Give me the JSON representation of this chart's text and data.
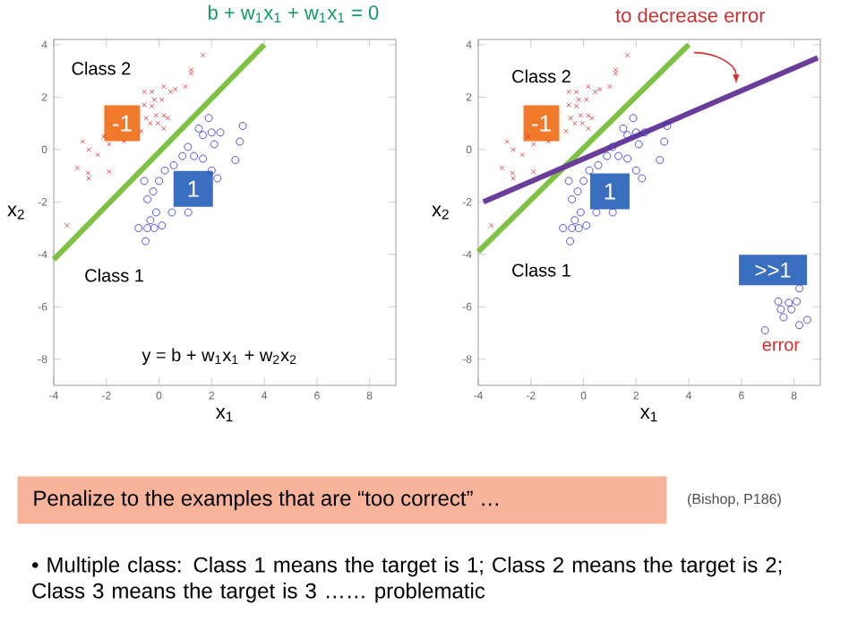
{
  "chart_data": [
    {
      "type": "scatter",
      "title": "b + w$_{1}$x$_{1}$ + w$_{1}$x$_{1}$ = 0",
      "xlabel": "x$_{1}$",
      "ylabel": "x$_{2}$",
      "xlim": [
        -4,
        9
      ],
      "ylim": [
        -9,
        4.2
      ],
      "xticks": [
        -4,
        -2,
        0,
        2,
        4,
        6,
        8
      ],
      "yticks": [
        -8,
        -6,
        -4,
        -2,
        0,
        2,
        4
      ],
      "series": [
        {
          "marker": "cross",
          "color": "#e8252a",
          "x": [
            1.67,
            1.22,
            1.22,
            1.0,
            0.62,
            0.44,
            0.18,
            -0.27,
            -0.56,
            -0.18,
            0.11,
            -0.56,
            -0.27,
            -0.11,
            0.18,
            0.33,
            -0.49,
            -0.33,
            -0.04,
            -0.67,
            0.18,
            -1.33,
            -2.1,
            -2.9,
            -2.67,
            -2.33,
            -1.9,
            -3.1,
            -2.7,
            -2.67,
            -1.9,
            -3.5
          ],
          "values": [
            3.6,
            3.04,
            2.9,
            2.4,
            2.3,
            2.2,
            2.4,
            2.2,
            2.2,
            1.9,
            1.9,
            1.7,
            1.65,
            1.3,
            1.3,
            1.2,
            1.2,
            1.0,
            1.0,
            0.7,
            0.8,
            0.3,
            0.5,
            0.3,
            0,
            -0.2,
            0.2,
            -0.7,
            -0.9,
            -1.1,
            -0.85,
            -2.9
          ]
        },
        {
          "marker": "circle",
          "color": "#2a2ad0",
          "x": [
            1.89,
            1.51,
            1.67,
            2.0,
            2.33,
            2.1,
            3.18,
            3.07,
            2.9,
            1.1,
            1.33,
            0.89,
            0.56,
            0.22,
            0,
            -0.56,
            -0.22,
            -0.44,
            -0.11,
            -0.33,
            -0.78,
            -0.44,
            -0.18,
            0.11,
            -0.51,
            0.49,
            1.11,
            2.22,
            2.0,
            1.67
          ],
          "values": [
            1.2,
            0.8,
            0.55,
            0.65,
            0.65,
            0.2,
            0.9,
            0.3,
            -0.4,
            0.1,
            -0.25,
            -0.25,
            -0.6,
            -0.8,
            -1.2,
            -1.2,
            -1.6,
            -1.9,
            -2.4,
            -2.7,
            -3.0,
            -3.0,
            -3.0,
            -2.9,
            -3.5,
            -2.4,
            -2.4,
            -1.1,
            -0.8,
            -0.35
          ]
        },
        {
          "type": "line",
          "marker": "none",
          "color": "#7dc242",
          "x": [
            -4,
            4
          ],
          "values": [
            -4.2,
            4
          ]
        }
      ],
      "annotations": [
        "Class 2",
        "Class 1",
        {
          "text": "-1",
          "x": -1.4,
          "y": 1.0
        },
        {
          "text": "1",
          "x": 1.3,
          "y": -1.5
        },
        "y = b + w$_{1}$x$_{1}$ + w$_{2}$x$_{2}$"
      ]
    },
    {
      "type": "scatter",
      "title": "to decrease error",
      "xlabel": "x$_{1}$",
      "ylabel": "x$_{2}$",
      "xlim": [
        -4,
        9
      ],
      "ylim": [
        -9,
        4.2
      ],
      "xticks": [
        -4,
        -2,
        0,
        2,
        4,
        6,
        8
      ],
      "yticks": [
        -8,
        -6,
        -4,
        -2,
        0,
        2,
        4
      ],
      "series": [
        {
          "marker": "cross",
          "color": "#e8252a",
          "x": [
            1.67,
            1.22,
            1.22,
            1.0,
            0.62,
            0.44,
            0.18,
            -0.27,
            -0.56,
            -0.18,
            0.11,
            -0.56,
            -0.27,
            -0.11,
            0.18,
            0.33,
            -0.49,
            -0.33,
            -0.04,
            -0.67,
            0.18,
            -1.33,
            -2.1,
            -2.9,
            -2.67,
            -2.33,
            -1.9,
            -3.1,
            -2.7,
            -2.67,
            -1.9,
            -3.5
          ],
          "values": [
            3.6,
            3.04,
            2.9,
            2.4,
            2.3,
            2.2,
            2.4,
            2.2,
            2.2,
            1.9,
            1.9,
            1.7,
            1.65,
            1.3,
            1.3,
            1.2,
            1.2,
            1.0,
            1.0,
            0.7,
            0.8,
            0.3,
            0.5,
            0.3,
            0,
            -0.2,
            0.2,
            -0.7,
            -0.9,
            -1.1,
            -0.85,
            -2.9
          ]
        },
        {
          "marker": "circle",
          "color": "#2a2ad0",
          "x": [
            1.89,
            1.51,
            1.67,
            2.0,
            2.33,
            2.1,
            3.18,
            3.07,
            2.9,
            1.1,
            1.33,
            0.89,
            0.56,
            0.22,
            0,
            -0.56,
            -0.22,
            -0.44,
            -0.11,
            -0.33,
            -0.78,
            -0.44,
            -0.18,
            0.11,
            -0.51,
            0.49,
            1.11,
            2.22,
            2.0,
            1.67,
            8.2,
            7.4,
            7.8,
            8.1,
            7.5,
            7.9,
            7.6,
            8.2,
            8.5,
            6.9
          ],
          "values": [
            1.2,
            0.8,
            0.55,
            0.65,
            0.65,
            0.2,
            0.9,
            0.3,
            -0.4,
            0.1,
            -0.25,
            -0.25,
            -0.6,
            -0.8,
            -1.2,
            -1.2,
            -1.6,
            -1.9,
            -2.4,
            -2.7,
            -3.0,
            -3.0,
            -3.0,
            -2.9,
            -3.5,
            -2.4,
            -2.4,
            -1.1,
            -0.8,
            -0.35,
            -5.3,
            -5.8,
            -5.85,
            -5.8,
            -6.1,
            -6.1,
            -6.4,
            -6.7,
            -6.5,
            -6.9
          ]
        },
        {
          "type": "line",
          "marker": "none",
          "color": "#7dc242",
          "x": [
            -4,
            4
          ],
          "values": [
            -3.9,
            4
          ]
        },
        {
          "type": "line",
          "marker": "none",
          "color": "#6a3d9a",
          "x": [
            -3.8,
            8.9
          ],
          "values": [
            -2.0,
            3.5
          ]
        }
      ],
      "annotations": [
        "Class 2",
        "Class 1",
        {
          "text": "-1",
          "x": -1.6,
          "y": 1.0
        },
        {
          "text": "1",
          "x": 1.0,
          "y": -1.6
        },
        {
          "text": ">>1",
          "x": 7.2,
          "y": -4.6
        },
        "error",
        "Penalize to the examples that are “too correct” …",
        "(Bishop, P186)",
        "• Multiple class: Class 1 means the target is 1; Class 2 means the target is 2; Class 3 means the target is 3 …… problematic"
      ]
    }
  ]
}
